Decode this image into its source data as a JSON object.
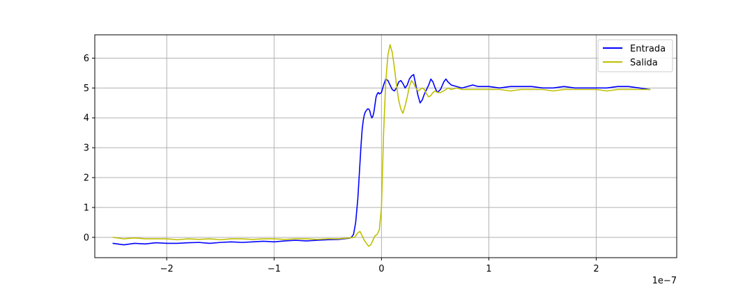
{
  "chart_data": {
    "type": "line",
    "title": "",
    "xlabel": "",
    "ylabel": "",
    "x_offset_label": "1e−7",
    "x_scale": 1e-07,
    "xlim": [
      -2.67,
      2.75
    ],
    "ylim": [
      -0.68,
      6.78
    ],
    "x_ticks": [
      -2,
      -1,
      0,
      1,
      2
    ],
    "x_tick_labels": [
      "−2",
      "−1",
      "0",
      "1",
      "2"
    ],
    "y_ticks": [
      0,
      1,
      2,
      3,
      4,
      5,
      6
    ],
    "y_tick_labels": [
      "0",
      "1",
      "2",
      "3",
      "4",
      "5",
      "6"
    ],
    "grid": true,
    "legend_position": "top-right",
    "series": [
      {
        "name": "Entrada",
        "color": "#0000ff",
        "x": [
          -2.5,
          -2.4,
          -2.3,
          -2.2,
          -2.1,
          -2.0,
          -1.9,
          -1.8,
          -1.7,
          -1.6,
          -1.5,
          -1.4,
          -1.3,
          -1.2,
          -1.1,
          -1.0,
          -0.9,
          -0.8,
          -0.7,
          -0.6,
          -0.5,
          -0.4,
          -0.35,
          -0.3,
          -0.28,
          -0.26,
          -0.24,
          -0.22,
          -0.2,
          -0.19,
          -0.18,
          -0.17,
          -0.16,
          -0.15,
          -0.14,
          -0.13,
          -0.12,
          -0.11,
          -0.1,
          -0.09,
          -0.08,
          -0.07,
          -0.06,
          -0.05,
          -0.04,
          -0.03,
          -0.02,
          0.0,
          0.02,
          0.04,
          0.06,
          0.08,
          0.1,
          0.12,
          0.14,
          0.16,
          0.18,
          0.2,
          0.22,
          0.24,
          0.26,
          0.28,
          0.3,
          0.32,
          0.34,
          0.36,
          0.38,
          0.4,
          0.42,
          0.44,
          0.46,
          0.48,
          0.5,
          0.52,
          0.55,
          0.58,
          0.6,
          0.62,
          0.65,
          0.7,
          0.75,
          0.8,
          0.85,
          0.9,
          1.0,
          1.1,
          1.2,
          1.3,
          1.4,
          1.5,
          1.6,
          1.7,
          1.8,
          1.9,
          2.0,
          2.1,
          2.2,
          2.3,
          2.4,
          2.5
        ],
        "y": [
          -0.2,
          -0.25,
          -0.2,
          -0.22,
          -0.18,
          -0.2,
          -0.2,
          -0.18,
          -0.17,
          -0.2,
          -0.17,
          -0.15,
          -0.17,
          -0.15,
          -0.13,
          -0.15,
          -0.12,
          -0.1,
          -0.12,
          -0.1,
          -0.08,
          -0.07,
          -0.05,
          -0.03,
          0.0,
          0.1,
          0.5,
          1.3,
          2.5,
          3.1,
          3.6,
          3.9,
          4.1,
          4.2,
          4.25,
          4.3,
          4.3,
          4.25,
          4.1,
          4.0,
          4.05,
          4.2,
          4.45,
          4.7,
          4.8,
          4.85,
          4.8,
          4.85,
          5.1,
          5.3,
          5.25,
          5.1,
          4.95,
          4.9,
          5.0,
          5.2,
          5.25,
          5.15,
          5.0,
          5.1,
          5.3,
          5.4,
          5.45,
          5.1,
          4.75,
          4.5,
          4.6,
          4.8,
          4.95,
          5.1,
          5.3,
          5.2,
          5.0,
          4.85,
          4.95,
          5.2,
          5.3,
          5.2,
          5.1,
          5.05,
          5.0,
          5.05,
          5.1,
          5.05,
          5.05,
          5.0,
          5.05,
          5.05,
          5.05,
          5.0,
          5.0,
          5.05,
          5.0,
          5.0,
          5.0,
          5.0,
          5.05,
          5.05,
          5.0,
          4.95
        ]
      },
      {
        "name": "Salida",
        "color": "#bfbf00",
        "x": [
          -2.5,
          -2.4,
          -2.3,
          -2.2,
          -2.1,
          -2.0,
          -1.9,
          -1.8,
          -1.7,
          -1.6,
          -1.5,
          -1.4,
          -1.3,
          -1.2,
          -1.1,
          -1.0,
          -0.9,
          -0.8,
          -0.7,
          -0.6,
          -0.5,
          -0.4,
          -0.3,
          -0.25,
          -0.22,
          -0.2,
          -0.18,
          -0.16,
          -0.14,
          -0.12,
          -0.1,
          -0.08,
          -0.06,
          -0.04,
          -0.02,
          0.0,
          0.02,
          0.04,
          0.06,
          0.08,
          0.1,
          0.12,
          0.14,
          0.16,
          0.18,
          0.2,
          0.22,
          0.24,
          0.26,
          0.28,
          0.3,
          0.32,
          0.34,
          0.36,
          0.38,
          0.4,
          0.42,
          0.44,
          0.46,
          0.48,
          0.5,
          0.52,
          0.55,
          0.58,
          0.6,
          0.62,
          0.65,
          0.7,
          0.75,
          0.8,
          0.85,
          0.9,
          1.0,
          1.1,
          1.2,
          1.3,
          1.4,
          1.5,
          1.6,
          1.7,
          1.8,
          1.9,
          2.0,
          2.1,
          2.2,
          2.3,
          2.4,
          2.5
        ],
        "y": [
          0.0,
          -0.05,
          -0.02,
          -0.05,
          -0.05,
          -0.05,
          -0.08,
          -0.05,
          -0.07,
          -0.05,
          -0.08,
          -0.05,
          -0.05,
          -0.07,
          -0.05,
          -0.05,
          -0.07,
          -0.05,
          -0.05,
          -0.07,
          -0.05,
          -0.05,
          -0.02,
          0.0,
          0.15,
          0.2,
          0.05,
          -0.1,
          -0.2,
          -0.3,
          -0.25,
          -0.1,
          0.05,
          0.1,
          0.25,
          1.0,
          3.5,
          5.2,
          6.1,
          6.45,
          6.2,
          5.7,
          5.1,
          4.6,
          4.3,
          4.15,
          4.4,
          4.7,
          5.05,
          5.25,
          5.15,
          5.0,
          4.9,
          4.95,
          5.0,
          4.95,
          4.8,
          4.7,
          4.75,
          4.85,
          4.9,
          4.85,
          4.85,
          4.9,
          4.95,
          5.0,
          4.95,
          5.0,
          4.95,
          4.95,
          4.95,
          4.95,
          4.95,
          4.95,
          4.9,
          4.95,
          4.95,
          4.95,
          4.9,
          4.95,
          4.95,
          4.95,
          4.95,
          4.9,
          4.95,
          4.95,
          4.95,
          4.95
        ]
      }
    ]
  }
}
